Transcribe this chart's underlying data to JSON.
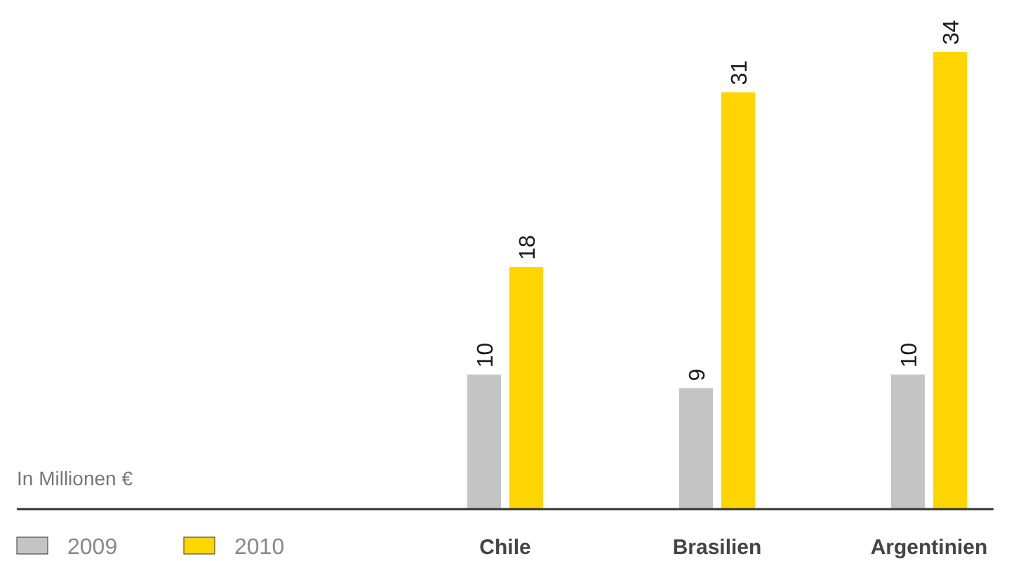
{
  "chart_data": {
    "type": "bar",
    "annotations": [
      "In Millionen €"
    ],
    "categories": [
      "Chile",
      "Brasilien",
      "Argentinien"
    ],
    "series": [
      {
        "name": "2009",
        "color": "#c4c4c4",
        "values": [
          10,
          9,
          10
        ]
      },
      {
        "name": "2010",
        "color": "#ffd500",
        "values": [
          18,
          31,
          34
        ]
      }
    ],
    "data_labels": true,
    "legend": "bottom left"
  }
}
